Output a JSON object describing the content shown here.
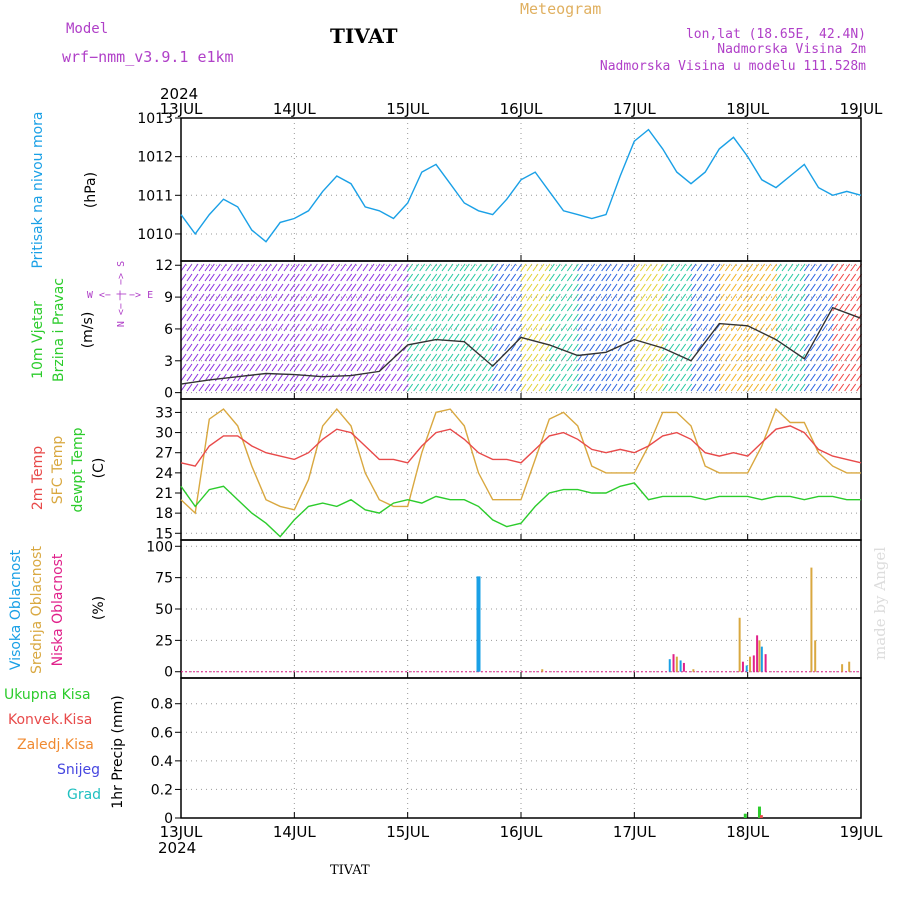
{
  "header": {
    "model_label": "Model",
    "model_name": "wrf−nmm_v3.9.1  e1km",
    "station": "TIVAT",
    "meteogram": "Meteogram",
    "lonlat": "lon,lat (18.65E, 42.4N)",
    "altitude": "Nadmorska Visina 2m",
    "model_altitude": "Nadmorska Visina u modelu 111.528m",
    "year_top": "2024",
    "year_bottom": "2024",
    "footer_station": "TIVAT",
    "watermark": "made by Angel"
  },
  "colors": {
    "pressure": "#1aa0e6",
    "temp2m": "#e84a4a",
    "sfc_temp": "#d9a840",
    "dewpoint": "#2ccc2c",
    "high_cloud": "#1aa0e6",
    "mid_cloud": "#d9a840",
    "low_cloud": "#e0208a",
    "total_precip": "#2ccc2c",
    "convective_precip": "#e84a4a",
    "frozen_precip": "#f08a30",
    "snow": "#4646e0",
    "hail": "#20c0c0",
    "axis_label_purple": "#b040c8"
  },
  "chart_data": [
    {
      "type": "line",
      "panel": "pressure",
      "ylabel_main": "Pritisak na nivou mora",
      "ylabel_unit": "(hPa)",
      "x_ticks": [
        "13JUL",
        "14JUL",
        "15JUL",
        "16JUL",
        "17JUL",
        "18JUL",
        "19JUL"
      ],
      "y_ticks": [
        1010,
        1011,
        1012,
        1013
      ],
      "ylim": [
        1009.3,
        1013.0
      ],
      "x_unit": "hours since 13JUL 00UTC",
      "x": [
        0,
        3,
        6,
        9,
        12,
        15,
        18,
        21,
        24,
        27,
        30,
        33,
        36,
        39,
        42,
        45,
        48,
        51,
        54,
        57,
        60,
        63,
        66,
        69,
        72,
        75,
        78,
        81,
        84,
        87,
        90,
        93,
        96,
        99,
        102,
        105,
        108,
        111,
        114,
        117,
        120,
        123,
        126,
        129,
        132,
        135,
        138,
        141,
        144
      ],
      "series": [
        {
          "values": [
            1010.5,
            1010.0,
            1010.5,
            1010.9,
            1010.7,
            1010.1,
            1009.8,
            1010.3,
            1010.4,
            1010.6,
            1011.1,
            1011.5,
            1011.3,
            1010.7,
            1010.6,
            1010.4,
            1010.8,
            1011.6,
            1011.8,
            1011.3,
            1010.8,
            1010.6,
            1010.5,
            1010.9,
            1011.4,
            1011.6,
            1011.1,
            1010.6,
            1010.5,
            1010.4,
            1010.5,
            1011.5,
            1012.4,
            1012.7,
            1012.2,
            1011.6,
            1011.3,
            1011.6,
            1012.2,
            1012.5,
            1012.0,
            1011.4,
            1011.2,
            1011.5,
            1011.8,
            1011.2,
            1011.0,
            1011.1,
            1011.0
          ]
        }
      ]
    },
    {
      "type": "line",
      "panel": "wind",
      "ylabel_main": "10m Vjetar",
      "ylabel_sub": "Brzina i Pravac",
      "ylabel_unit": "(m/s)",
      "compass_ns": "N <− | −> S",
      "compass_we": "W <− | −> E",
      "y_ticks": [
        0,
        3,
        6,
        9,
        12
      ],
      "ylim": [
        -0.6,
        12.4
      ],
      "x": [
        0,
        6,
        12,
        18,
        24,
        30,
        36,
        42,
        48,
        54,
        60,
        66,
        72,
        78,
        84,
        90,
        96,
        102,
        108,
        114,
        120,
        126,
        132,
        138,
        144
      ],
      "series": [
        {
          "name": "speed",
          "values": [
            0.8,
            1.2,
            1.5,
            1.8,
            1.7,
            1.5,
            1.6,
            2.0,
            4.5,
            5.0,
            4.8,
            2.5,
            5.2,
            4.5,
            3.5,
            3.8,
            5.0,
            4.2,
            3.0,
            6.5,
            6.3,
            5.0,
            3.2,
            8.0,
            7.0
          ]
        }
      ],
      "band_colors": [
        "#8a2ce0",
        "#8a2ce0",
        "#8a2ce0",
        "#8a2ce0",
        "#8a2ce0",
        "#8a2ce0",
        "#8a2ce0",
        "#8a2ce0",
        "#20c8a0",
        "#20c8a0",
        "#20c8a0",
        "#2860e0",
        "#e0d030",
        "#20c8a0",
        "#2860e0",
        "#2860e0",
        "#e0d030",
        "#20c8a0",
        "#2860e0",
        "#f0b020",
        "#f0b020",
        "#20c8a0",
        "#2860e0",
        "#f04040",
        "#f04040"
      ]
    },
    {
      "type": "line",
      "panel": "temperature",
      "ylabel_a": "2m Temp",
      "ylabel_b": "SFC Temp",
      "ylabel_c": "dewpt Temp",
      "ylabel_unit": "(C)",
      "y_ticks": [
        15,
        18,
        21,
        24,
        27,
        30,
        33
      ],
      "ylim": [
        14,
        35
      ],
      "x": [
        0,
        3,
        6,
        9,
        12,
        15,
        18,
        21,
        24,
        27,
        30,
        33,
        36,
        39,
        42,
        45,
        48,
        51,
        54,
        57,
        60,
        63,
        66,
        69,
        72,
        75,
        78,
        81,
        84,
        87,
        90,
        93,
        96,
        99,
        102,
        105,
        108,
        111,
        114,
        117,
        120,
        123,
        126,
        129,
        132,
        135,
        138,
        141,
        144
      ],
      "series": [
        {
          "name": "2m Temp",
          "values": [
            25.5,
            25.0,
            28.0,
            29.5,
            29.5,
            28.0,
            27.0,
            26.5,
            26.0,
            27.0,
            29.0,
            30.5,
            30.0,
            28.0,
            26.0,
            26.0,
            25.5,
            28.0,
            30.0,
            30.5,
            29.0,
            27.0,
            26.0,
            26.0,
            25.5,
            27.5,
            29.5,
            30.0,
            29.0,
            27.5,
            27.0,
            27.5,
            27.0,
            28.0,
            29.5,
            30.0,
            29.0,
            27.0,
            26.5,
            27.0,
            26.5,
            28.5,
            30.5,
            31.0,
            30.0,
            27.5,
            26.5,
            26.0,
            25.5
          ]
        },
        {
          "name": "SFC Temp",
          "values": [
            20.0,
            18.0,
            32.0,
            33.5,
            31.0,
            25.0,
            20.0,
            19.0,
            18.5,
            23.0,
            31.0,
            33.5,
            31.0,
            24.0,
            20.0,
            19.0,
            19.0,
            27.0,
            33.0,
            33.5,
            31.0,
            24.0,
            20.0,
            20.0,
            20.0,
            26.0,
            32.0,
            33.0,
            31.0,
            25.0,
            24.0,
            24.0,
            24.0,
            28.0,
            33.0,
            33.0,
            31.0,
            25.0,
            24.0,
            24.0,
            24.0,
            28.0,
            33.5,
            31.5,
            31.5,
            27.0,
            25.0,
            24.0,
            24.0
          ]
        },
        {
          "name": "dewpt Temp",
          "values": [
            22.0,
            19.0,
            21.5,
            22.0,
            20.0,
            18.0,
            16.5,
            14.5,
            17.0,
            19.0,
            19.5,
            19.0,
            20.0,
            18.5,
            18.0,
            19.5,
            20.0,
            19.5,
            20.5,
            20.0,
            20.0,
            19.0,
            17.0,
            16.0,
            16.5,
            19.0,
            21.0,
            21.5,
            21.5,
            21.0,
            21.0,
            22.0,
            22.5,
            20.0,
            20.5,
            20.5,
            20.5,
            20.0,
            20.5,
            20.5,
            20.5,
            20.0,
            20.5,
            20.5,
            20.0,
            20.5,
            20.5,
            20.0,
            20.0
          ]
        }
      ]
    },
    {
      "type": "bar",
      "panel": "cloud",
      "ylabel_a": "Visoka Oblacnost",
      "ylabel_b": "Srednja Oblacnost",
      "ylabel_c": "Niska Oblacnost",
      "ylabel_unit": "(%)",
      "y_ticks": [
        0,
        25,
        50,
        75,
        100
      ],
      "ylim": [
        -5,
        105
      ],
      "bars": [
        {
          "x": 63.0,
          "series": "high",
          "value": 76
        },
        {
          "x": 76.5,
          "series": "mid",
          "value": 2
        },
        {
          "x": 103.5,
          "series": "high",
          "value": 10
        },
        {
          "x": 104.3,
          "series": "low",
          "value": 14
        },
        {
          "x": 105.0,
          "series": "mid",
          "value": 12
        },
        {
          "x": 105.8,
          "series": "high",
          "value": 9
        },
        {
          "x": 106.5,
          "series": "low",
          "value": 7
        },
        {
          "x": 108.5,
          "series": "mid",
          "value": 2
        },
        {
          "x": 118.3,
          "series": "mid",
          "value": 43
        },
        {
          "x": 119.0,
          "series": "low",
          "value": 8
        },
        {
          "x": 119.8,
          "series": "high",
          "value": 5
        },
        {
          "x": 120.5,
          "series": "mid",
          "value": 12
        },
        {
          "x": 121.3,
          "series": "low",
          "value": 13
        },
        {
          "x": 122.0,
          "series": "low",
          "value": 29
        },
        {
          "x": 122.5,
          "series": "mid",
          "value": 25
        },
        {
          "x": 123.0,
          "series": "high",
          "value": 20
        },
        {
          "x": 123.8,
          "series": "low",
          "value": 14
        },
        {
          "x": 133.5,
          "series": "mid",
          "value": 83
        },
        {
          "x": 134.3,
          "series": "mid",
          "value": 25
        },
        {
          "x": 140.0,
          "series": "mid",
          "value": 6
        },
        {
          "x": 141.5,
          "series": "mid",
          "value": 8
        }
      ]
    },
    {
      "type": "bar",
      "panel": "precipitation",
      "legend": [
        "Ukupna Kisa",
        "Konvek.Kisa",
        "Zaledj.Kisa",
        "Snijeg",
        "Grad"
      ],
      "ylabel": "1hr Precip (mm)",
      "y_ticks": [
        0,
        0.2,
        0.4,
        0.6,
        0.8
      ],
      "ylim": [
        0,
        0.98
      ],
      "bars": [
        {
          "x": 119.5,
          "series": "total",
          "value": 0.03
        },
        {
          "x": 122.5,
          "series": "total",
          "value": 0.08
        },
        {
          "x": 122.9,
          "series": "convective",
          "value": 0.02
        }
      ]
    }
  ]
}
